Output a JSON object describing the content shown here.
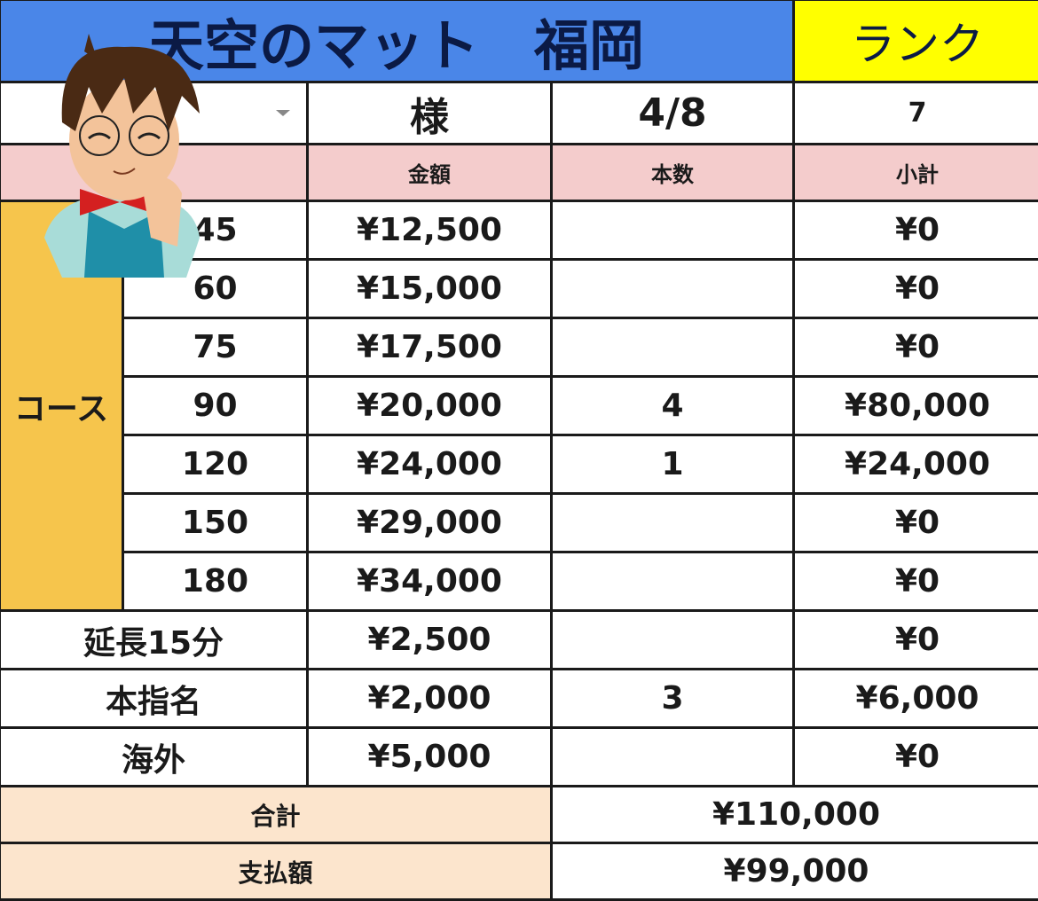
{
  "header": {
    "title": "天空のマット　福岡",
    "rank_label": "ランク"
  },
  "info": {
    "name_value": "",
    "honorific": "様",
    "date": "4/8",
    "rank_value": "7"
  },
  "columns": {
    "price": "金額",
    "count": "本数",
    "subtotal": "小計"
  },
  "course_label": "コース",
  "courses": [
    {
      "minutes": "45",
      "price": "¥12,500",
      "count": "",
      "subtotal": "¥0"
    },
    {
      "minutes": "60",
      "price": "¥15,000",
      "count": "",
      "subtotal": "¥0"
    },
    {
      "minutes": "75",
      "price": "¥17,500",
      "count": "",
      "subtotal": "¥0"
    },
    {
      "minutes": "90",
      "price": "¥20,000",
      "count": "4",
      "subtotal": "¥80,000"
    },
    {
      "minutes": "120",
      "price": "¥24,000",
      "count": "1",
      "subtotal": "¥24,000"
    },
    {
      "minutes": "150",
      "price": "¥29,000",
      "count": "",
      "subtotal": "¥0"
    },
    {
      "minutes": "180",
      "price": "¥34,000",
      "count": "",
      "subtotal": "¥0"
    }
  ],
  "extras": [
    {
      "label": "延長15分",
      "price": "¥2,500",
      "count": "",
      "subtotal": "¥0"
    },
    {
      "label": "本指名",
      "price": "¥2,000",
      "count": "3",
      "subtotal": "¥6,000"
    },
    {
      "label": "海外",
      "price": "¥5,000",
      "count": "",
      "subtotal": "¥0"
    }
  ],
  "totals": {
    "total_label": "合計",
    "total_value": "¥110,000",
    "paid_label": "支払額",
    "paid_value": "¥99,000"
  },
  "colors": {
    "header_blue": "#4a86e8",
    "rank_yellow": "#ffff00",
    "header_pink": "#f4cccc",
    "course_orange": "#f6c54c",
    "total_beige": "#fce5cd"
  }
}
